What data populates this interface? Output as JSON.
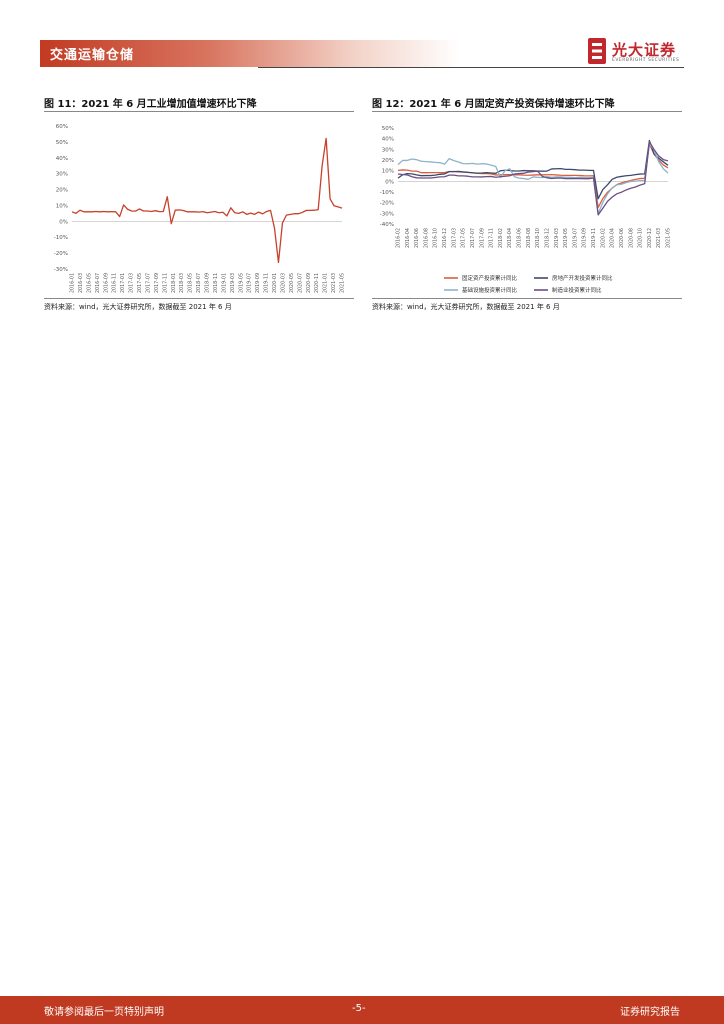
{
  "header": {
    "section_title": "交通运输仓储",
    "logo_cn": "光大证券",
    "logo_en": "EVERBRIGHT SECURITIES"
  },
  "figures": {
    "fig11": {
      "title": "图 11：2021 年 6 月工业增加值增速环比下降",
      "source": "资料来源：wind，光大证券研究所，数据截至 2021 年 6 月"
    },
    "fig12": {
      "title": "图 12：2021 年 6 月固定资产投资保持增速环比下降",
      "source": "资料来源：wind，光大证券研究所，数据截至 2021 年 6 月"
    }
  },
  "chart_data": [
    {
      "type": "line",
      "ylim": [
        -30,
        60
      ],
      "yticks": [
        "60%",
        "50%",
        "40%",
        "30%",
        "20%",
        "10%",
        "0%",
        "-10%",
        "-20%",
        "-30%"
      ],
      "xticks": [
        "2016-01",
        "2016-03",
        "2016-05",
        "2016-07",
        "2016-09",
        "2016-11",
        "2017-01",
        "2017-03",
        "2017-05",
        "2017-07",
        "2017-09",
        "2017-11",
        "2018-01",
        "2018-03",
        "2018-05",
        "2018-07",
        "2018-09",
        "2018-11",
        "2019-01",
        "2019-03",
        "2019-05",
        "2019-07",
        "2019-09",
        "2019-11",
        "2020-01",
        "2020-03",
        "2020-05",
        "2020-07",
        "2020-09",
        "2020-11",
        "2021-01",
        "2021-03",
        "2021-05"
      ],
      "series": [
        {
          "color": "#c8412a",
          "values": [
            6,
            5,
            7,
            6,
            6,
            6,
            6.2,
            6,
            6.2,
            6,
            6.1,
            6,
            3,
            10.3,
            7.6,
            6.5,
            6.4,
            7.8,
            6.5,
            6.5,
            6.2,
            6.7,
            6.1,
            6.2,
            15.5,
            -1.5,
            7,
            7.2,
            6.8,
            6,
            6,
            6,
            5.8,
            6.1,
            5.4,
            5.8,
            6.2,
            5.4,
            5.7,
            3.4,
            8.5,
            5.4,
            5,
            6,
            4.4,
            5.2,
            4.4,
            5.8,
            4.7,
            6.2,
            6.9,
            -4.3,
            -25.9,
            -1.1,
            3.9,
            4.4,
            4.8,
            4.8,
            5.6,
            6.9,
            6.9,
            7,
            7.3,
            35.1,
            52.2,
            14.1,
            9.8,
            9.1,
            8.3
          ]
        }
      ]
    },
    {
      "type": "line",
      "ylim": [
        -40,
        50
      ],
      "yticks": [
        "50%",
        "40%",
        "30%",
        "20%",
        "10%",
        "0%",
        "-10%",
        "-20%",
        "-30%",
        "-40%"
      ],
      "xticks": [
        "2016-02",
        "2016-04",
        "2016-06",
        "2016-08",
        "2016-10",
        "2016-12",
        "2017-03",
        "2017-05",
        "2017-07",
        "2017-09",
        "2017-11",
        "2018-02",
        "2018-04",
        "2018-06",
        "2018-08",
        "2018-10",
        "2018-12",
        "2019-03",
        "2019-05",
        "2019-07",
        "2019-09",
        "2019-11",
        "2020-02",
        "2020-04",
        "2020-06",
        "2020-08",
        "2020-10",
        "2020-12",
        "2021-03",
        "2021-05"
      ],
      "legend_position": "bottom",
      "series": [
        {
          "name": "固定资产投资累计同比",
          "color": "#d9603f",
          "values": [
            10.2,
            10.7,
            10.5,
            9.6,
            9.6,
            8.1,
            8.1,
            8.2,
            8.2,
            8.2,
            8.1,
            9.2,
            9.2,
            8.9,
            8.6,
            8.3,
            8.2,
            7.6,
            7.3,
            7.2,
            7,
            6,
            6.1,
            6.3,
            6.3,
            6.1,
            6.1,
            5.8,
            5.7,
            5.9,
            6.1,
            6.1,
            6.2,
            6.3,
            6,
            5.7,
            5.6,
            5.6,
            5.6,
            5.4,
            5.2,
            5.1,
            5.2,
            -24.5,
            -16.1,
            -10.3,
            -6.3,
            -3.1,
            -1.6,
            -0.3,
            0.8,
            1.8,
            2.6,
            2.9,
            35,
            25.6,
            19.9,
            15.4,
            12.6
          ]
        },
        {
          "name": "房地产开发投资累计同比",
          "color": "#3d4a6b",
          "values": [
            3,
            6.2,
            7.2,
            7,
            6.1,
            5.3,
            5.4,
            5.4,
            5.8,
            6.6,
            6.9,
            9.1,
            9.1,
            9.3,
            8.8,
            8.5,
            7.9,
            7.7,
            7.8,
            8.1,
            7.8,
            7.5,
            9.9,
            10.4,
            10.2,
            9.7,
            9.7,
            10.1,
            9.9,
            9.9,
            9.7,
            9.5,
            9.6,
            11.6,
            11.8,
            11.9,
            11.2,
            11.2,
            10.9,
            10.5,
            10.5,
            10.3,
            10.2,
            -16.3,
            -7.7,
            -3.3,
            1.9,
            3.8,
            4.6,
            5.2,
            5.6,
            6.3,
            6.8,
            7,
            38.3,
            25.6,
            21.6,
            18.3,
            15
          ]
        },
        {
          "name": "基础设施投资累计同比",
          "color": "#8fb2c9",
          "values": [
            15.7,
            19.6,
            19.6,
            20.9,
            20.3,
            18.8,
            18.5,
            18.2,
            17.8,
            17.5,
            16.1,
            21.3,
            19.4,
            18.1,
            16.6,
            16.5,
            16.8,
            16.1,
            16.5,
            16.3,
            15.2,
            13.9,
            3.7,
            10,
            11.8,
            4.3,
            3,
            2.6,
            1.9,
            4.1,
            3.8,
            3.5,
            4.4,
            3.8,
            4.1,
            4.2,
            3.8,
            3.8,
            3.5,
            3.6,
            3.4,
            3.5,
            3.3,
            -30.3,
            -19.7,
            -11.8,
            -6.3,
            -3.3,
            -2.7,
            -1.2,
            -0.1,
            0.2,
            0.7,
            0.9,
            35,
            29.7,
            18.4,
            11.8,
            7.8
          ]
        },
        {
          "name": "制造业投资累计同比",
          "color": "#6b4f86",
          "values": [
            6.9,
            6.4,
            6,
            4.3,
            3.3,
            3.1,
            3.1,
            3.1,
            3.6,
            4.2,
            4.3,
            5.8,
            5.8,
            5.1,
            5.1,
            4.8,
            4.2,
            4.2,
            4.1,
            4.4,
            4.6,
            3.8,
            4.3,
            4.8,
            5.2,
            6.8,
            7.3,
            7.5,
            8.7,
            9.1,
            9.5,
            4.6,
            3.3,
            2.7,
            3,
            3,
            2.6,
            2.6,
            2.6,
            2.6,
            2.5,
            2.5,
            3.1,
            -31.5,
            -25.2,
            -18.8,
            -14.8,
            -11.7,
            -10.2,
            -8.1,
            -6.5,
            -5.3,
            -3.5,
            -2.2,
            37.3,
            29.8,
            23.8,
            20.4,
            19.2
          ]
        }
      ]
    }
  ],
  "footer": {
    "left": "敬请参阅最后一页特别声明",
    "center": "-5-",
    "right": "证券研究报告"
  }
}
